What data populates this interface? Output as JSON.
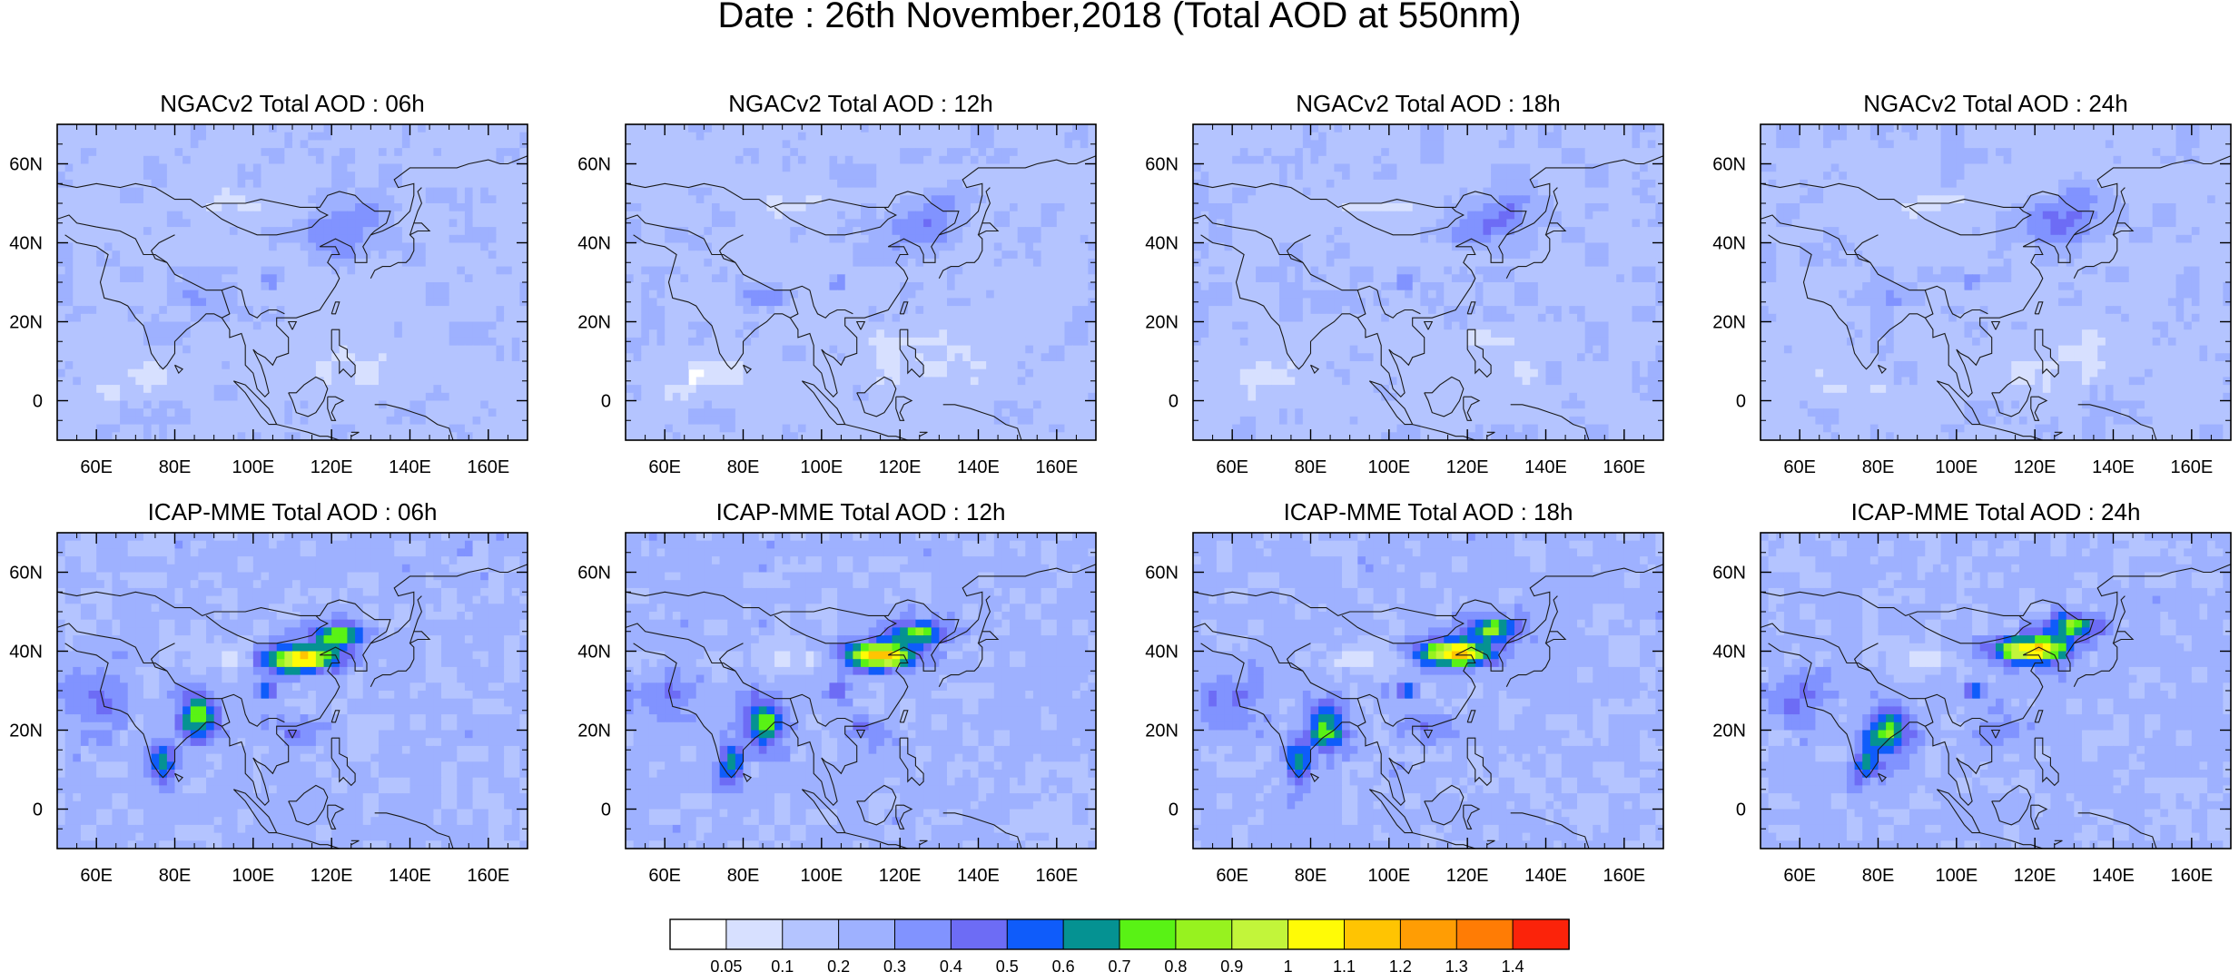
{
  "title": "Date : 26th November,2018 (Total AOD at 550nm)",
  "rows": [
    {
      "model": "NGACv2",
      "panels": [
        {
          "title": "NGACv2 Total AOD : 06h"
        },
        {
          "title": "NGACv2 Total AOD : 12h"
        },
        {
          "title": "NGACv2 Total AOD : 18h"
        },
        {
          "title": "NGACv2 Total AOD : 24h"
        }
      ]
    },
    {
      "model": "ICAP-MME",
      "panels": [
        {
          "title": "ICAP-MME Total AOD : 06h"
        },
        {
          "title": "ICAP-MME Total AOD : 12h"
        },
        {
          "title": "ICAP-MME Total AOD : 18h"
        },
        {
          "title": "ICAP-MME Total AOD : 24h"
        }
      ]
    }
  ],
  "map": {
    "lon_range": [
      50,
      170
    ],
    "lat_range": [
      -10,
      70
    ],
    "x_ticks": [
      "60E",
      "80E",
      "100E",
      "120E",
      "140E",
      "160E"
    ],
    "x_tick_values": [
      60,
      80,
      100,
      120,
      140,
      160
    ],
    "y_ticks": [
      "60N",
      "40N",
      "20N",
      "0"
    ],
    "y_tick_values": [
      60,
      40,
      20,
      0
    ]
  },
  "colorbar": {
    "labels": [
      "0.05",
      "0.1",
      "0.2",
      "0.3",
      "0.4",
      "0.5",
      "0.6",
      "0.7",
      "0.8",
      "0.9",
      "1",
      "1.1",
      "1.2",
      "1.3",
      "1.4"
    ],
    "colors": [
      "#ffffff",
      "#d7e0ff",
      "#b4c4ff",
      "#9eb1ff",
      "#8193ff",
      "#6d6cf5",
      "#0f5cfa",
      "#059292",
      "#59f215",
      "#97f21f",
      "#c2f53a",
      "#fffb06",
      "#ffc402",
      "#ff9d04",
      "#ff7c05",
      "#fb230a"
    ]
  }
}
